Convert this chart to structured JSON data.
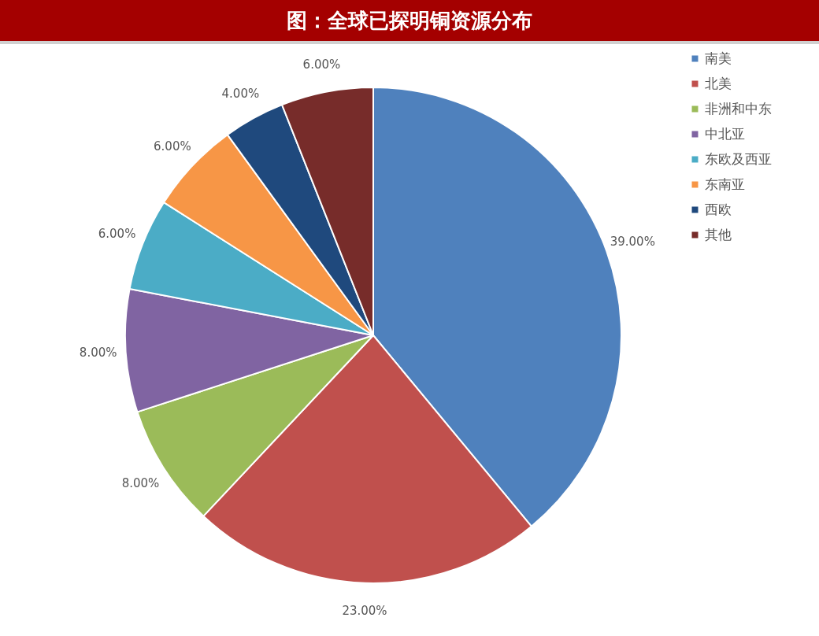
{
  "chart_data": {
    "type": "pie",
    "title": "图：全球已探明铜资源分布",
    "categories": [
      "南美",
      "北美",
      "非洲和中东",
      "中北亚",
      "东欧及西亚",
      "东南亚",
      "西欧",
      "其他"
    ],
    "values": [
      39,
      23,
      8,
      8,
      6,
      6,
      4,
      6
    ],
    "colors": [
      "#4f81bd",
      "#c0504d",
      "#9bbb59",
      "#8064a2",
      "#4bacc6",
      "#f79646",
      "#1f497d",
      "#772c2a"
    ],
    "value_labels": [
      "39.00%",
      "23.00%",
      "8.00%",
      "8.00%",
      "6.00%",
      "6.00%",
      "4.00%",
      "6.00%"
    ],
    "legend": "right"
  }
}
